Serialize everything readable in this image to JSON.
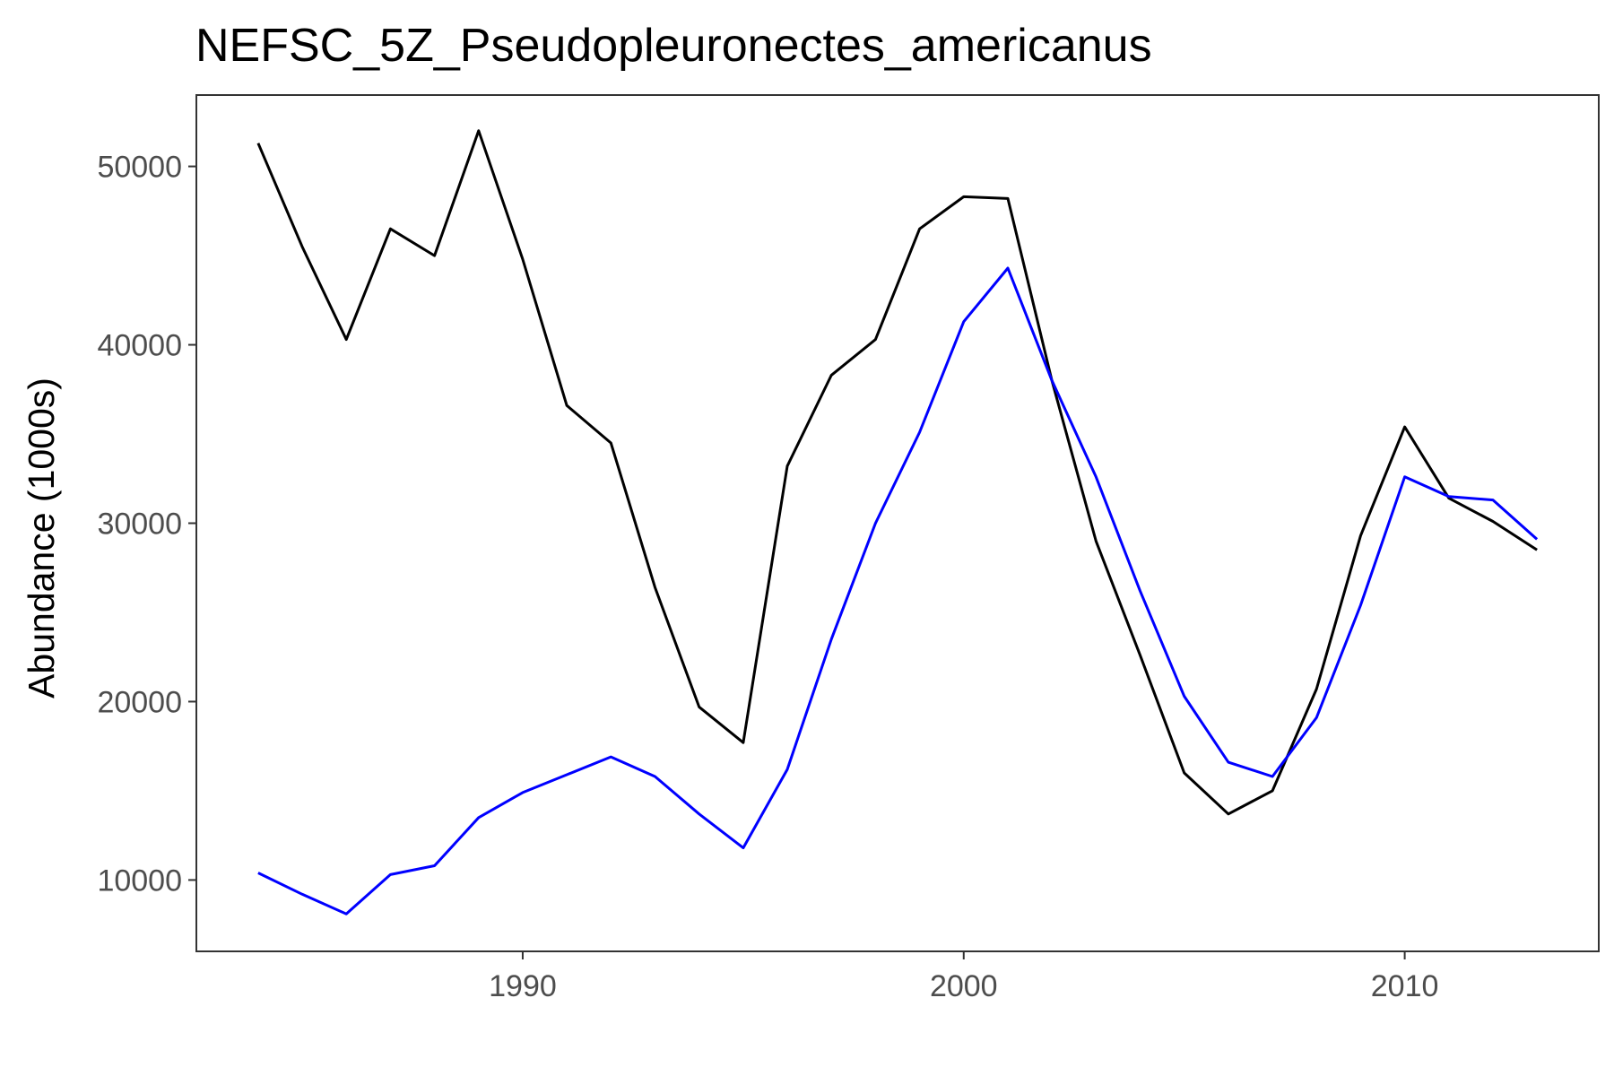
{
  "chart_data": {
    "type": "line",
    "title": "NEFSC_5Z_Pseudopleuronectes_americanus",
    "xlabel": "",
    "ylabel": "Abundance (1000s)",
    "xlim": [
      1982.6,
      2014.4
    ],
    "ylim": [
      6000,
      54000
    ],
    "x_ticks": [
      1990,
      2000,
      2010
    ],
    "y_ticks": [
      10000,
      20000,
      30000,
      40000,
      50000
    ],
    "x_tick_labels": [
      "1990",
      "2000",
      "2010"
    ],
    "y_tick_labels": [
      "10000",
      "20000",
      "30000",
      "40000",
      "50000"
    ],
    "grid": false,
    "legend": "none",
    "x": [
      1984,
      1985,
      1986,
      1987,
      1988,
      1989,
      1990,
      1991,
      1992,
      1993,
      1994,
      1995,
      1996,
      1997,
      1998,
      1999,
      2000,
      2001,
      2002,
      2003,
      2004,
      2005,
      2006,
      2007,
      2008,
      2009,
      2010,
      2011,
      2012,
      2013
    ],
    "series": [
      {
        "color": "#000000",
        "values": [
          51300,
          45500,
          40300,
          46500,
          45000,
          52000,
          44800,
          36600,
          34500,
          26400,
          19700,
          17700,
          33200,
          38300,
          40300,
          46500,
          48300,
          48200,
          38000,
          29000,
          22600,
          16000,
          13700,
          15000,
          20700,
          29300,
          35400,
          31400,
          30100,
          28500
        ]
      },
      {
        "color": "#0000ff",
        "values": [
          10400,
          9200,
          8100,
          10300,
          10800,
          13500,
          14900,
          15900,
          16900,
          15800,
          13700,
          11800,
          16200,
          23500,
          30000,
          35100,
          41300,
          44300,
          38000,
          32600,
          26200,
          20300,
          16600,
          15800,
          19100,
          25400,
          32600,
          31500,
          31300,
          29100
        ]
      }
    ]
  },
  "colors": {
    "panel_border": "#333333",
    "tick_label": "#4d4d4d",
    "background": "#ffffff"
  }
}
